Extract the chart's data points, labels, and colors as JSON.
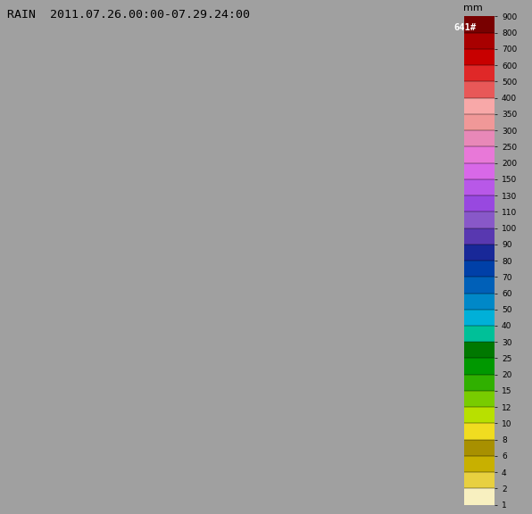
{
  "title": "RAIN  2011.07.26.00:00-07.29.24:00",
  "colorbar_label": "mm",
  "colorbar_value_label": "641#",
  "background_color": "#a0a0a0",
  "levels": [
    1.0,
    2.0,
    4.0,
    6.0,
    8.0,
    10.0,
    12.0,
    15.0,
    20.0,
    25.0,
    30.0,
    40.0,
    50.0,
    60.0,
    70.0,
    80.0,
    90.0,
    100.0,
    110.0,
    130.0,
    150.0,
    200.0,
    250.0,
    300.0,
    350.0,
    400.0,
    500.0,
    600.0,
    700.0,
    800.0,
    900.0
  ],
  "colors": [
    "#f8f0c0",
    "#e8d040",
    "#c8b000",
    "#a89000",
    "#f0dc20",
    "#b8e000",
    "#78cc00",
    "#30b000",
    "#009800",
    "#007800",
    "#00c098",
    "#00b0d8",
    "#0088c8",
    "#0060b8",
    "#0040a8",
    "#182898",
    "#5838b0",
    "#8858c8",
    "#9848e0",
    "#b858e8",
    "#d868e8",
    "#e878d8",
    "#e888b8",
    "#f09898",
    "#f8a8a8",
    "#e85858",
    "#e02828",
    "#c80000",
    "#a80000",
    "#780000",
    "#580000"
  ],
  "fig_width": 5.96,
  "fig_height": 5.76,
  "map_bg": "#a8a8a8"
}
